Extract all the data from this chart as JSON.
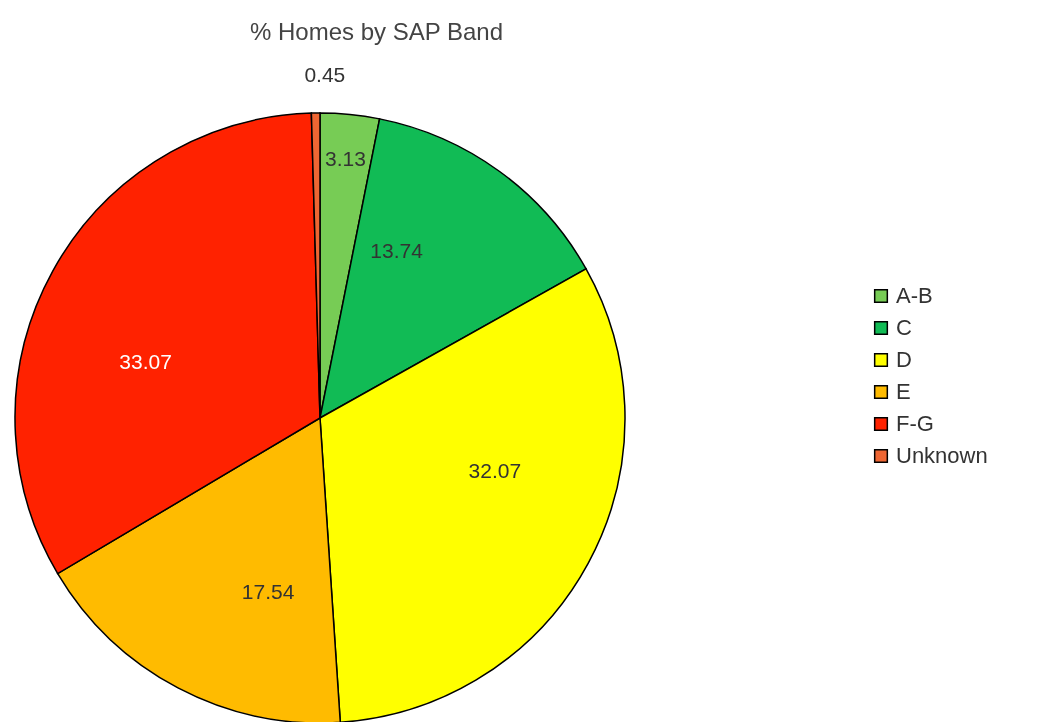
{
  "chart_data": {
    "type": "pie",
    "title": "% Homes by SAP Band",
    "categories": [
      "A-B",
      "C",
      "D",
      "E",
      "F-G",
      "Unknown"
    ],
    "values": [
      3.13,
      13.74,
      32.07,
      17.54,
      33.07,
      0.45
    ],
    "colors": [
      "#77cc55",
      "#11bb55",
      "#ffff00",
      "#ffbb00",
      "#ff2200",
      "#ee6633"
    ],
    "data_labels": true,
    "legend": "right"
  }
}
